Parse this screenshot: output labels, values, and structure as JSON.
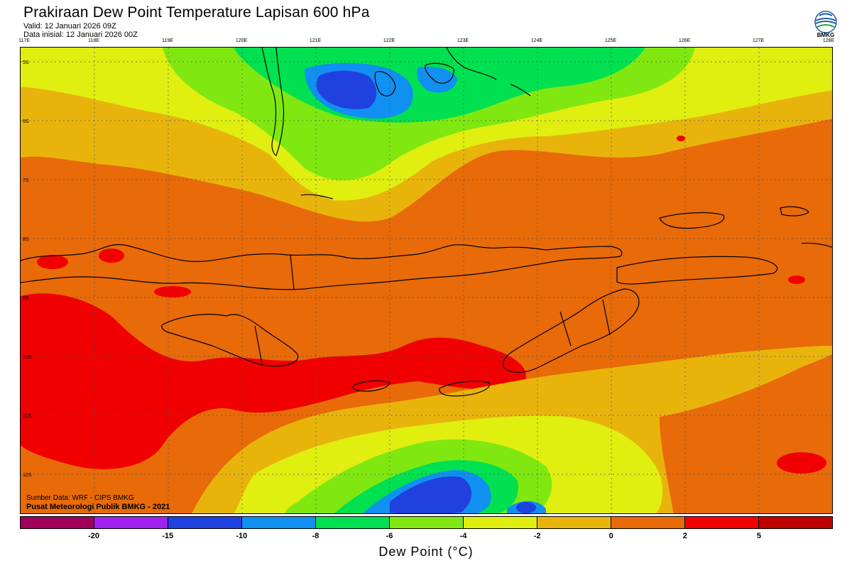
{
  "header": {
    "title": "Prakiraan Dew Point Temperature Lapisan 600 hPa",
    "valid": "Valid: 12 Januari 2026 09Z",
    "init": "Data inisial: 12 Januari 2026 00Z"
  },
  "logo": {
    "text": "BMKG",
    "icon": "bmkg-logo-icon"
  },
  "axes": {
    "lon_labels": [
      "117E",
      "118E",
      "119E",
      "120E",
      "121E",
      "122E",
      "123E",
      "124E",
      "125E",
      "126E",
      "127E",
      "128E"
    ],
    "lat_labels": [
      "5S",
      "6S",
      "7S",
      "8S",
      "9S",
      "10S",
      "11S",
      "12S"
    ]
  },
  "credits": {
    "source": "Sumber Data: WRF - CIPS BMKG",
    "publisher": "Pusat Meteorologi Publik BMKG - 2021"
  },
  "colorbar": {
    "colors": [
      "#a0005a",
      "#a020f0",
      "#2040e0",
      "#1090f0",
      "#00e050",
      "#80e810",
      "#e0ee10",
      "#e8b40c",
      "#e86a08",
      "#f00000",
      "#c00000"
    ],
    "ticks": [
      "-20",
      "-15",
      "-10",
      "-8",
      "-6",
      "-4",
      "-2",
      "0",
      "2",
      "5"
    ],
    "label": "Dew Point (°C)"
  }
}
